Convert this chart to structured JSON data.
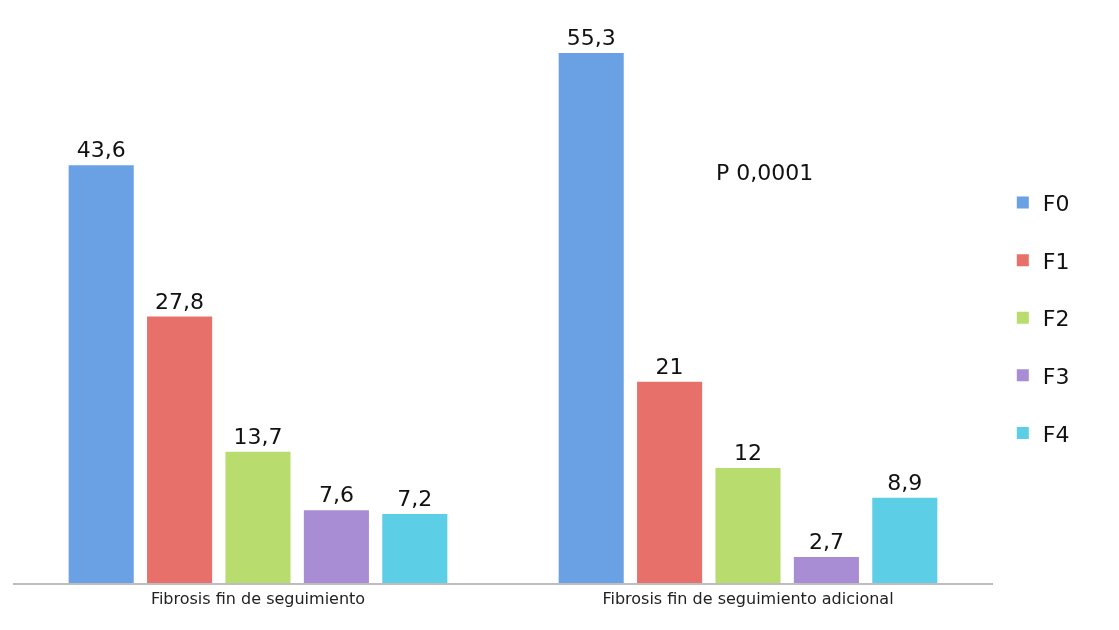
{
  "chart_data": {
    "type": "bar",
    "categories": [
      "Fibrosis fin de seguimiento",
      "Fibrosis fin de seguimiento adicional"
    ],
    "series": [
      {
        "name": "F0",
        "color": "#6aa0e4",
        "values": [
          43.6,
          55.3
        ],
        "value_labels": [
          "43,6",
          "55,3"
        ]
      },
      {
        "name": "F1",
        "color": "#e8706a",
        "values": [
          27.8,
          21
        ],
        "value_labels": [
          "27,8",
          "21"
        ]
      },
      {
        "name": "F2",
        "color": "#b8dc6e",
        "values": [
          13.7,
          12
        ],
        "value_labels": [
          "13,7",
          "12"
        ]
      },
      {
        "name": "F3",
        "color": "#a88cd4",
        "values": [
          7.6,
          2.7
        ],
        "value_labels": [
          "7,6",
          "2,7"
        ]
      },
      {
        "name": "F4",
        "color": "#5ccfe6",
        "values": [
          7.2,
          8.9
        ],
        "value_labels": [
          "7,2",
          "8,9"
        ]
      }
    ],
    "annotations": [
      "P 0,0001"
    ],
    "legend": "right"
  }
}
